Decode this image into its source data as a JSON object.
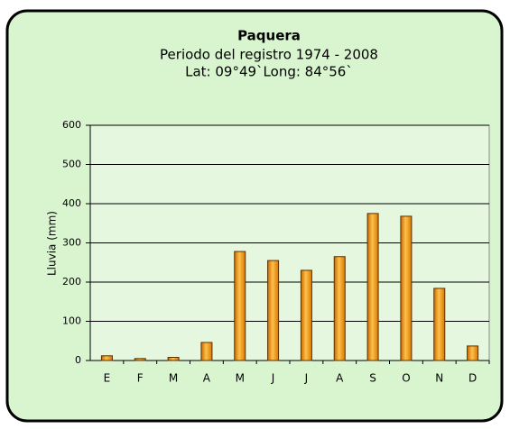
{
  "chart_data": {
    "type": "bar",
    "title": "Paquera",
    "subtitle": [
      "Periodo del registro 1974 - 2008",
      "Lat: 09°49`Long: 84°56`"
    ],
    "y_label": "Lluvia (mm)",
    "categories": [
      "E",
      "F",
      "M",
      "A",
      "M",
      "J",
      "J",
      "A",
      "S",
      "O",
      "N",
      "D"
    ],
    "values": [
      12,
      5,
      8,
      46,
      278,
      255,
      230,
      265,
      375,
      368,
      184,
      37
    ],
    "color": "#f7a21c",
    "ylim": [
      0,
      600
    ],
    "yticks": [
      0,
      100,
      200,
      300,
      400,
      500,
      600
    ],
    "grid": true
  }
}
